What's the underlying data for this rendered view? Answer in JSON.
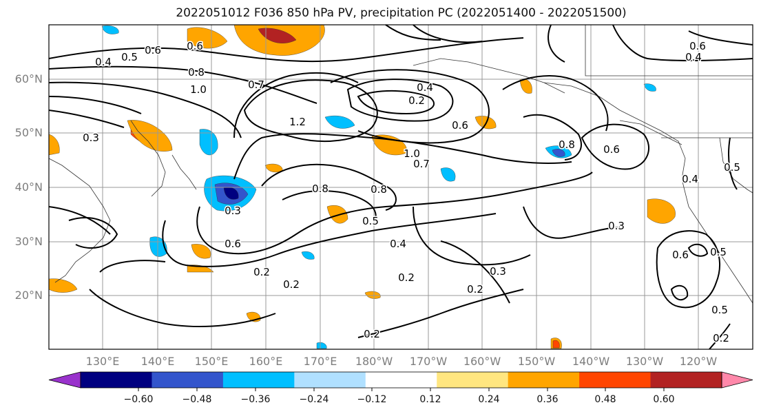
{
  "title": "2022051012 F036 850 hPa PV, precipitation PC (2022051400 - 2022051500)",
  "lat_labels": [
    "60°N",
    "50°N",
    "40°N",
    "30°N",
    "20°N"
  ],
  "lon_labels": [
    "130°E",
    "140°E",
    "150°E",
    "160°E",
    "170°E",
    "180°W",
    "170°W",
    "160°W",
    "150°W",
    "140°W",
    "130°W",
    "120°W"
  ],
  "contour_labels": [
    "0.6",
    "0.5",
    "0.4",
    "0.6",
    "0.8",
    "1.0",
    "0.7",
    "1.2",
    "0.3",
    "0.2",
    "0.4",
    "0.2",
    "0.6",
    "0.8",
    "0.5",
    "1.0",
    "0.7",
    "0.6",
    "0.5",
    "0.8",
    "0.4",
    "0.8",
    "0.3",
    "0.6",
    "0.5",
    "0.3",
    "0.6",
    "0.4",
    "0.2",
    "0.2",
    "0.3",
    "0.2",
    "0.2",
    "0.5",
    "0.6",
    "0.4",
    "0.2"
  ],
  "colorbar": {
    "ticks": [
      "−0.60",
      "−0.48",
      "−0.36",
      "−0.24",
      "−0.12",
      "0.12",
      "0.24",
      "0.36",
      "0.48",
      "0.60"
    ],
    "colors": [
      "#9932cc",
      "#000080",
      "#3355cc",
      "#00bfff",
      "#b0e0ff",
      "#ffffff",
      "#ffe680",
      "#ffa500",
      "#ff4500",
      "#b22222",
      "#ff88aa"
    ]
  }
}
